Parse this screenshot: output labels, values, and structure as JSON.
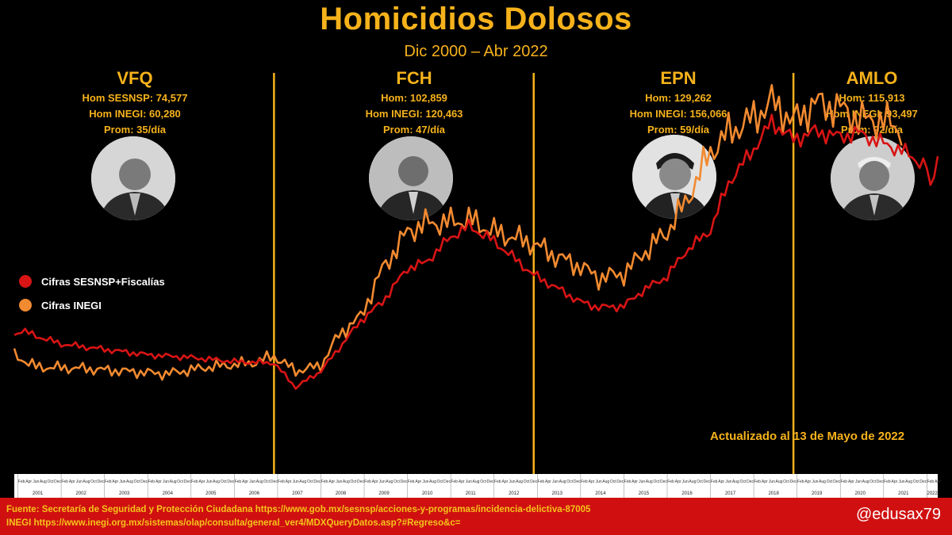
{
  "title": "Homicidios Dolosos",
  "subtitle": "Dic 2000 – Abr 2022",
  "periods": [
    {
      "name": "VFQ",
      "stat1": "Hom SESNSP: 74,577",
      "stat2": "Hom INEGI: 60,280",
      "stat3": "Prom: 35/día"
    },
    {
      "name": "FCH",
      "stat1": "Hom: 102,859",
      "stat2": "Hom INEGI: 120,463",
      "stat3": "Prom: 47/día"
    },
    {
      "name": "EPN",
      "stat1": "Hom: 129,262",
      "stat2": "Hom INEGI: 156,066",
      "stat3": "Prom: 59/día"
    },
    {
      "name": "AMLO",
      "stat1": "Hom:  115,913",
      "stat2": "Hom INEGI: 93,497",
      "stat3": "Prom: 92/día"
    }
  ],
  "legend": [
    {
      "label": "Cifras SESNSP+Fiscalías",
      "color": "#d81414"
    },
    {
      "label": "Cifras INEGI",
      "color": "#f28a30"
    }
  ],
  "updated": "Actualizado al 13 de Mayo de 2022",
  "footer": {
    "source_line1": "Fuente: Secretaría de Seguridad y Protección Ciudadana https://www.gob.mx/sesnsp/acciones-y-programas/incidencia-delictiva-87005",
    "source_line2": "INEGI https://www.inegi.org.mx/sistemas/olap/consulta/general_ver4/MDXQueryDatos.asp?#Regreso&c=",
    "handle": "@edusax79"
  },
  "colors": {
    "accent": "#f6b21b",
    "sesnsp": "#d81414",
    "inegi": "#f28a30",
    "footer_bg": "#d01010"
  },
  "chart_data": {
    "type": "line",
    "title": "Homicidios Dolosos",
    "subtitle": "Dic 2000 – Abr 2022",
    "x_start": "2000-12",
    "x_end": "2022-04",
    "x_ticks": [
      "2001",
      "2002",
      "2003",
      "2004",
      "2005",
      "2006",
      "2007",
      "2008",
      "2009",
      "2010",
      "2011",
      "2012",
      "2013",
      "2014",
      "2015",
      "2016",
      "2017",
      "2018",
      "2019",
      "2020",
      "2021",
      "2022"
    ],
    "ylim": [
      0,
      3500
    ],
    "period_dividers": [
      "2006-12",
      "2012-12",
      "2018-12"
    ],
    "series": [
      {
        "name": "Cifras SESNSP+Fiscalías",
        "color": "#d81414",
        "anchors": [
          [
            "2000-12",
            1030
          ],
          [
            "2001-02",
            1060
          ],
          [
            "2001-06",
            1020
          ],
          [
            "2002-01",
            960
          ],
          [
            "2003-01",
            920
          ],
          [
            "2004-01",
            880
          ],
          [
            "2005-01",
            860
          ],
          [
            "2006-01",
            830
          ],
          [
            "2006-12",
            820
          ],
          [
            "2007-06",
            640
          ],
          [
            "2008-01",
            760
          ],
          [
            "2008-12",
            1130
          ],
          [
            "2009-06",
            1270
          ],
          [
            "2010-01",
            1520
          ],
          [
            "2010-06",
            1560
          ],
          [
            "2011-01",
            1750
          ],
          [
            "2011-06",
            1830
          ],
          [
            "2012-01",
            1720
          ],
          [
            "2012-12",
            1470
          ],
          [
            "2013-06",
            1380
          ],
          [
            "2014-01",
            1270
          ],
          [
            "2014-06",
            1230
          ],
          [
            "2015-01",
            1240
          ],
          [
            "2015-06",
            1350
          ],
          [
            "2016-01",
            1460
          ],
          [
            "2016-06",
            1640
          ],
          [
            "2017-01",
            1800
          ],
          [
            "2017-06",
            2150
          ],
          [
            "2018-01",
            2400
          ],
          [
            "2018-06",
            2600
          ],
          [
            "2018-12",
            2470
          ],
          [
            "2019-06",
            2530
          ],
          [
            "2020-01",
            2490
          ],
          [
            "2020-06",
            2520
          ],
          [
            "2021-01",
            2440
          ],
          [
            "2021-06",
            2390
          ],
          [
            "2022-01",
            2270
          ],
          [
            "2022-02",
            2080
          ],
          [
            "2022-04",
            2360
          ]
        ]
      },
      {
        "name": "Cifras INEGI",
        "color": "#f28a30",
        "anchors": [
          [
            "2000-12",
            880
          ],
          [
            "2001-06",
            790
          ],
          [
            "2002-06",
            780
          ],
          [
            "2003-06",
            760
          ],
          [
            "2004-06",
            740
          ],
          [
            "2005-06",
            790
          ],
          [
            "2006-06",
            820
          ],
          [
            "2006-12",
            870
          ],
          [
            "2007-06",
            760
          ],
          [
            "2008-01",
            800
          ],
          [
            "2008-06",
            1030
          ],
          [
            "2008-12",
            1160
          ],
          [
            "2009-06",
            1510
          ],
          [
            "2010-01",
            1790
          ],
          [
            "2010-06",
            1850
          ],
          [
            "2011-01",
            1860
          ],
          [
            "2011-06",
            1880
          ],
          [
            "2012-01",
            1790
          ],
          [
            "2012-12",
            1700
          ],
          [
            "2013-06",
            1610
          ],
          [
            "2014-01",
            1530
          ],
          [
            "2014-06",
            1450
          ],
          [
            "2015-01",
            1480
          ],
          [
            "2015-06",
            1620
          ],
          [
            "2016-01",
            1790
          ],
          [
            "2016-06",
            2000
          ],
          [
            "2017-01",
            2380
          ],
          [
            "2017-06",
            2520
          ],
          [
            "2018-01",
            2630
          ],
          [
            "2018-06",
            2750
          ],
          [
            "2018-12",
            2600
          ],
          [
            "2019-06",
            2740
          ],
          [
            "2020-01",
            2700
          ],
          [
            "2020-06",
            2620
          ],
          [
            "2021-01",
            2610
          ],
          [
            "2021-06",
            2540
          ]
        ]
      }
    ]
  }
}
